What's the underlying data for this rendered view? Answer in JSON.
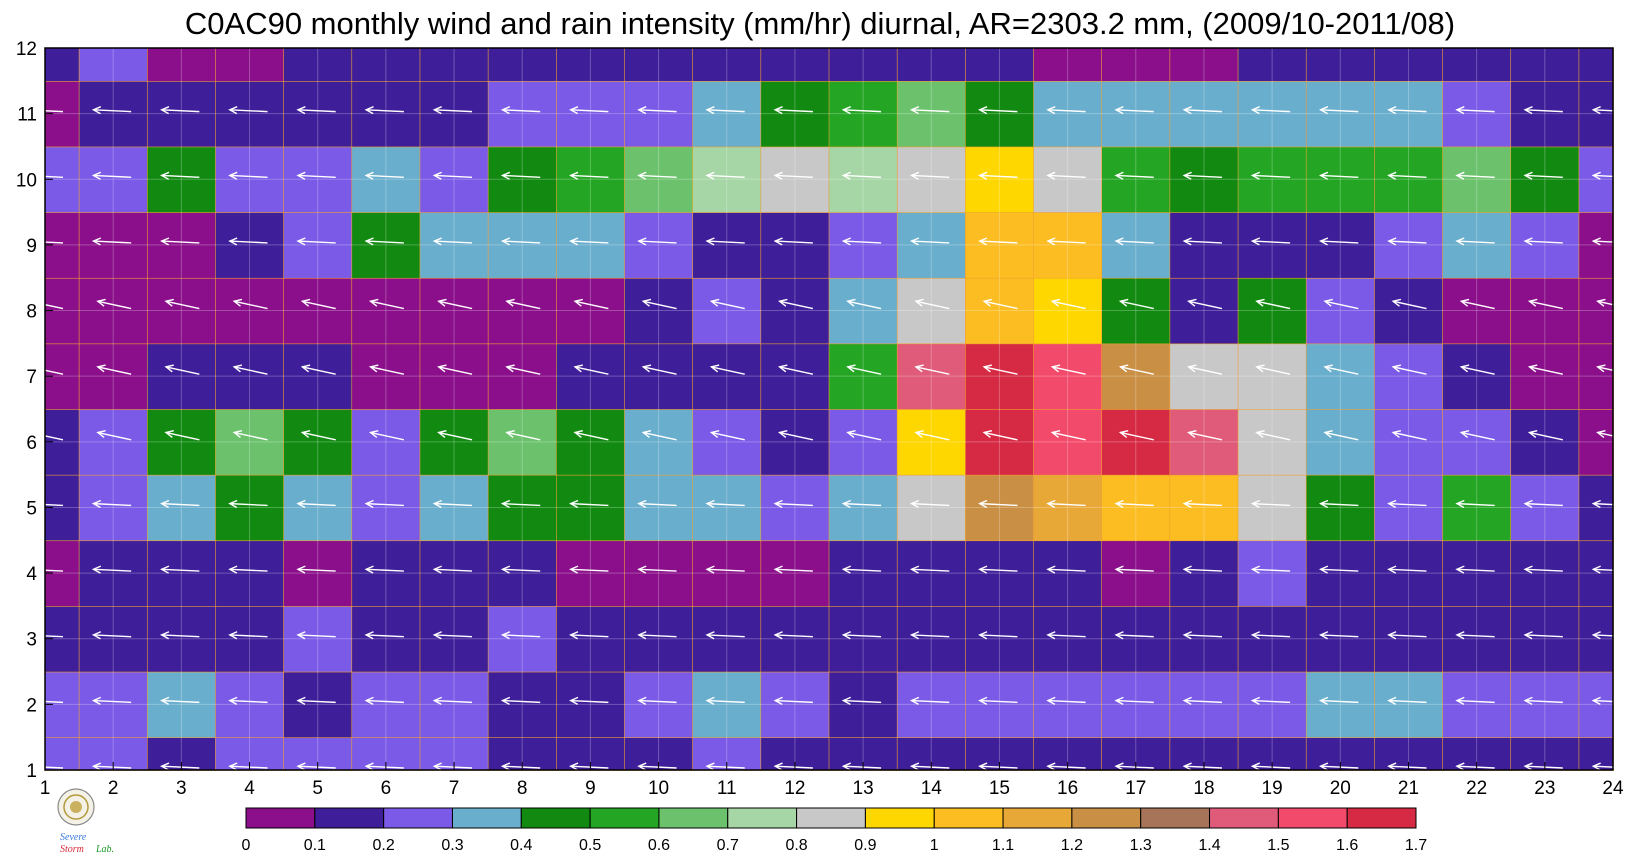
{
  "chart_data": {
    "type": "heatmap",
    "title": "C0AC90 monthly wind and rain intensity (mm/hr) diurnal, AR=2303.2 mm, (2009/10-2011/08)",
    "x_ticks": [
      "1",
      "2",
      "3",
      "4",
      "5",
      "6",
      "7",
      "8",
      "9",
      "10",
      "11",
      "12",
      "13",
      "14",
      "15",
      "16",
      "17",
      "18",
      "19",
      "20",
      "21",
      "22",
      "23",
      "24"
    ],
    "y_ticks": [
      "1",
      "2",
      "3",
      "4",
      "5",
      "6",
      "7",
      "8",
      "9",
      "10",
      "11",
      "12"
    ],
    "xlim": [
      1,
      24
    ],
    "ylim": [
      1,
      12
    ],
    "grid": true,
    "colorbar": {
      "levels": [
        "0",
        "0.1",
        "0.2",
        "0.3",
        "0.4",
        "0.5",
        "0.6",
        "0.7",
        "0.8",
        "0.9",
        "1",
        "1.1",
        "1.2",
        "1.3",
        "1.4",
        "1.5",
        "1.6",
        "1.7"
      ],
      "colors": [
        "#8b0f8a",
        "#3f1e9a",
        "#7a5ae6",
        "#6aaecd",
        "#128a12",
        "#24a624",
        "#6cc26c",
        "#a6d6a6",
        "#c8c8c8",
        "#ffd700",
        "#fbbd22",
        "#e8a838",
        "#c98f45",
        "#a7745a",
        "#e05a7a",
        "#f24a6a",
        "#d62a44"
      ]
    },
    "rain_rows": [
      {
        "hour_month": 1,
        "values": [
          0.2,
          0.2,
          0.15,
          0.2,
          0.2,
          0.25,
          0.2,
          0.15,
          0.15,
          0.15,
          0.2,
          0.15,
          0.1,
          0.15,
          0.15,
          0.15,
          0.15,
          0.15,
          0.15,
          0.15,
          0.15,
          0.15,
          0.15,
          0.15
        ]
      },
      {
        "hour_month": 2,
        "values": [
          0.25,
          0.25,
          0.32,
          0.25,
          0.15,
          0.25,
          0.2,
          0.15,
          0.15,
          0.2,
          0.35,
          0.2,
          0.15,
          0.25,
          0.25,
          0.25,
          0.25,
          0.25,
          0.25,
          0.3,
          0.3,
          0.25,
          0.25,
          0.25
        ]
      },
      {
        "hour_month": 3,
        "values": [
          0.15,
          0.15,
          0.15,
          0.15,
          0.2,
          0.15,
          0.15,
          0.2,
          0.15,
          0.15,
          0.15,
          0.15,
          0.1,
          0.15,
          0.1,
          0.1,
          0.15,
          0.15,
          0.15,
          0.15,
          0.15,
          0.15,
          0.15,
          0.15
        ]
      },
      {
        "hour_month": 4,
        "values": [
          0.05,
          0.15,
          0.15,
          0.15,
          0.05,
          0.15,
          0.15,
          0.1,
          0.05,
          0.05,
          0.05,
          0.05,
          0.15,
          0.15,
          0.15,
          0.1,
          0.05,
          0.15,
          0.25,
          0.15,
          0.15,
          0.15,
          0.15,
          0.1
        ]
      },
      {
        "hour_month": 5,
        "values": [
          0.15,
          0.25,
          0.35,
          0.45,
          0.35,
          0.25,
          0.35,
          0.45,
          0.45,
          0.35,
          0.35,
          0.25,
          0.35,
          0.85,
          1.2,
          1.15,
          1.05,
          1.05,
          0.85,
          0.45,
          0.25,
          0.55,
          0.25,
          0.15
        ]
      },
      {
        "hour_month": 6,
        "values": [
          0.15,
          0.25,
          0.45,
          0.62,
          0.45,
          0.25,
          0.45,
          0.65,
          0.45,
          0.35,
          0.25,
          0.15,
          0.25,
          0.95,
          1.6,
          1.5,
          1.6,
          1.4,
          0.85,
          0.35,
          0.25,
          0.25,
          0.15,
          0.05
        ]
      },
      {
        "hour_month": 7,
        "values": [
          0.05,
          0.05,
          0.15,
          0.15,
          0.15,
          0.05,
          0.05,
          0.05,
          0.15,
          0.15,
          0.15,
          0.15,
          0.55,
          1.45,
          1.65,
          1.55,
          1.25,
          0.85,
          0.85,
          0.35,
          0.25,
          0.15,
          0.05,
          0.05
        ]
      },
      {
        "hour_month": 8,
        "values": [
          0.05,
          0.05,
          0.05,
          0.05,
          0.05,
          0.05,
          0.05,
          0.05,
          0.05,
          0.15,
          0.25,
          0.15,
          0.35,
          0.85,
          1.05,
          0.95,
          0.45,
          0.15,
          0.45,
          0.25,
          0.15,
          0.05,
          0.05,
          0.05
        ]
      },
      {
        "hour_month": 9,
        "values": [
          0.05,
          0.05,
          0.05,
          0.15,
          0.25,
          0.45,
          0.35,
          0.35,
          0.35,
          0.25,
          0.15,
          0.15,
          0.25,
          0.35,
          1.0,
          1.05,
          0.35,
          0.15,
          0.15,
          0.15,
          0.25,
          0.35,
          0.25,
          0.05
        ]
      },
      {
        "hour_month": 10,
        "values": [
          0.25,
          0.25,
          0.45,
          0.25,
          0.25,
          0.35,
          0.25,
          0.45,
          0.55,
          0.65,
          0.75,
          0.85,
          0.75,
          0.85,
          0.95,
          0.8,
          0.55,
          0.45,
          0.55,
          0.55,
          0.55,
          0.65,
          0.45,
          0.25
        ]
      },
      {
        "hour_month": 11,
        "values": [
          0.05,
          0.15,
          0.15,
          0.15,
          0.15,
          0.15,
          0.15,
          0.25,
          0.25,
          0.25,
          0.35,
          0.45,
          0.55,
          0.65,
          0.45,
          0.35,
          0.35,
          0.3,
          0.3,
          0.3,
          0.3,
          0.25,
          0.15,
          0.15
        ]
      },
      {
        "hour_month": 12,
        "values": [
          0.15,
          0.25,
          0.05,
          0.05,
          0.15,
          0.15,
          0.15,
          0.15,
          0.15,
          0.1,
          0.1,
          0.1,
          0.1,
          0.15,
          0.1,
          0.05,
          0.05,
          0.05,
          0.15,
          0.15,
          0.15,
          0.15,
          0.15,
          0.15
        ]
      }
    ],
    "wind_direction": "mostly westward (arrows pointing left)"
  },
  "logo": {
    "text_line1": "Severe",
    "text_line2": "Storm",
    "text_line3": "Lab."
  }
}
